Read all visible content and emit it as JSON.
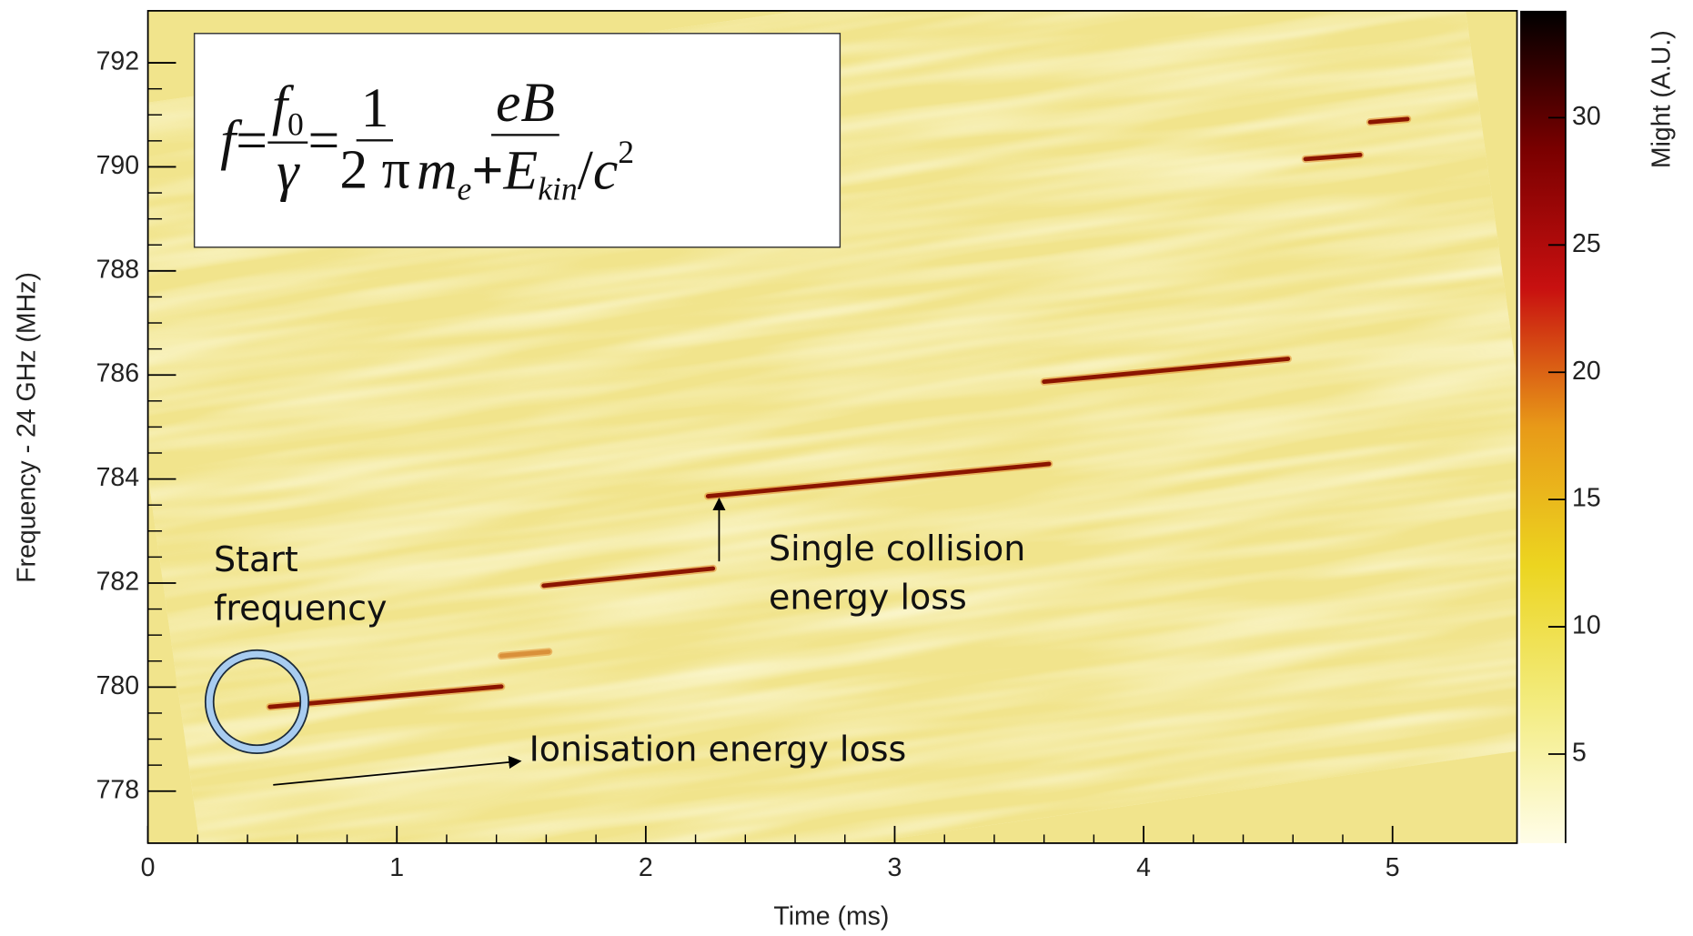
{
  "chart_data": {
    "type": "spectrogram",
    "xlabel": "Time (ms)",
    "ylabel": "Frequency - 24 GHz (MHz)",
    "zlabel": "Might (A.U.)",
    "xlim": [
      0,
      5.5
    ],
    "xticks": [
      0,
      1,
      2,
      3,
      4,
      5
    ],
    "ylim": [
      777,
      793
    ],
    "yticks": [
      778,
      780,
      782,
      784,
      786,
      788,
      790,
      792
    ],
    "zlim": [
      1.5,
      34.2
    ],
    "zticks": [
      5,
      10,
      15,
      20,
      25,
      30
    ],
    "colormap": [
      "#fffde8",
      "#f3ec80",
      "#ecd520",
      "#e89a18",
      "#c81010",
      "#7a0000",
      "#000000"
    ],
    "background_color": "#f1e48c",
    "tracks": [
      {
        "x": [
          0.49,
          1.42
        ],
        "y": [
          779.62,
          780.01
        ],
        "color": "#8b1500"
      },
      {
        "x": [
          1.42,
          1.61
        ],
        "y": [
          780.6,
          780.68
        ],
        "color": "#d9903a"
      },
      {
        "x": [
          1.59,
          2.27
        ],
        "y": [
          781.95,
          782.28
        ],
        "color": "#8b1500"
      },
      {
        "x": [
          2.25,
          3.62
        ],
        "y": [
          783.67,
          784.29
        ],
        "color": "#8b1500"
      },
      {
        "x": [
          3.6,
          4.58
        ],
        "y": [
          785.87,
          786.31
        ],
        "color": "#8b1500"
      },
      {
        "x": [
          4.65,
          4.87
        ],
        "y": [
          790.15,
          790.23
        ],
        "color": "#8b1500"
      },
      {
        "x": [
          4.91,
          5.06
        ],
        "y": [
          790.86,
          790.92
        ],
        "color": "#8b1500"
      }
    ],
    "annotations": {
      "start": "Start frequency",
      "collision": "Single collision energy loss",
      "ionisation": "Ionisation energy loss"
    },
    "formula": {
      "f": "f",
      "eq": "=",
      "f0": "f",
      "sub0": "0",
      "gamma": "γ",
      "one": "1",
      "two_pi": "2 π",
      "eB": "eB",
      "m": "m",
      "sub_e": "e",
      "plus": "+",
      "E": "E",
      "sub_kin": "kin",
      "slash": "/",
      "c": "c",
      "exp": "2"
    }
  }
}
